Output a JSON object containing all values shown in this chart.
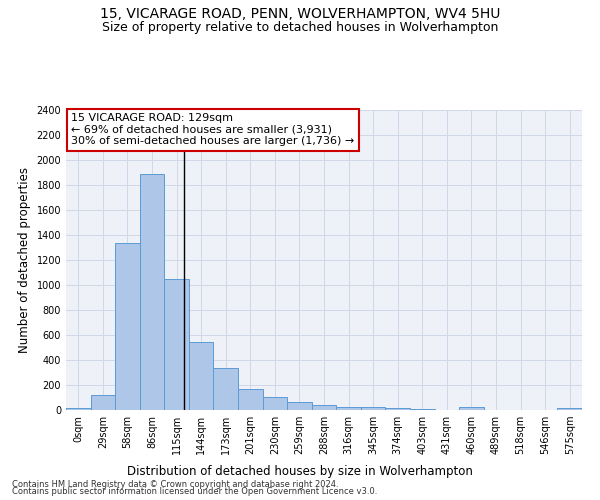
{
  "title": "15, VICARAGE ROAD, PENN, WOLVERHAMPTON, WV4 5HU",
  "subtitle": "Size of property relative to detached houses in Wolverhampton",
  "xlabel": "Distribution of detached houses by size in Wolverhampton",
  "ylabel": "Number of detached properties",
  "footer_line1": "Contains HM Land Registry data © Crown copyright and database right 2024.",
  "footer_line2": "Contains public sector information licensed under the Open Government Licence v3.0.",
  "bar_labels": [
    "0sqm",
    "29sqm",
    "58sqm",
    "86sqm",
    "115sqm",
    "144sqm",
    "173sqm",
    "201sqm",
    "230sqm",
    "259sqm",
    "288sqm",
    "316sqm",
    "345sqm",
    "374sqm",
    "403sqm",
    "431sqm",
    "460sqm",
    "489sqm",
    "518sqm",
    "546sqm",
    "575sqm"
  ],
  "bar_values": [
    15,
    120,
    1340,
    1890,
    1045,
    545,
    335,
    165,
    108,
    62,
    38,
    28,
    25,
    18,
    5,
    0,
    22,
    0,
    0,
    0,
    15
  ],
  "bar_color": "#aec6e8",
  "bar_edgecolor": "#5b9bd5",
  "vline_x": 4.31,
  "vline_color": "#000000",
  "annotation_text": "15 VICARAGE ROAD: 129sqm\n← 69% of detached houses are smaller (3,931)\n30% of semi-detached houses are larger (1,736) →",
  "annotation_box_color": "#ffffff",
  "annotation_box_edgecolor": "#cc0000",
  "ylim": [
    0,
    2400
  ],
  "yticks": [
    0,
    200,
    400,
    600,
    800,
    1000,
    1200,
    1400,
    1600,
    1800,
    2000,
    2200,
    2400
  ],
  "bg_color": "#ffffff",
  "axes_bg_color": "#eef2f8",
  "grid_color": "#d0d8e8",
  "title_fontsize": 10,
  "subtitle_fontsize": 9,
  "xlabel_fontsize": 8.5,
  "ylabel_fontsize": 8.5,
  "tick_fontsize": 7,
  "annotation_fontsize": 8,
  "footer_fontsize": 6
}
